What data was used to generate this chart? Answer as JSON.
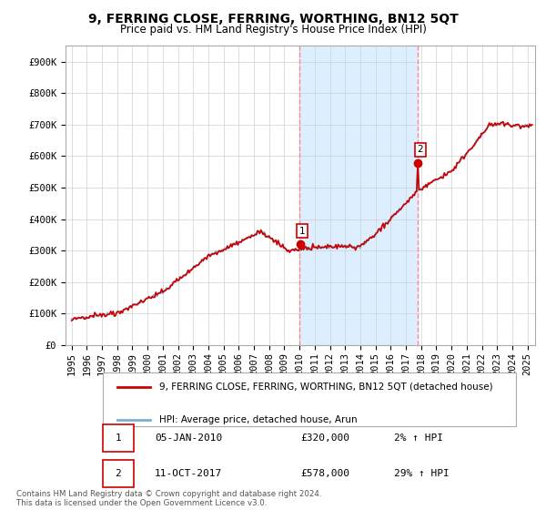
{
  "title": "9, FERRING CLOSE, FERRING, WORTHING, BN12 5QT",
  "subtitle": "Price paid vs. HM Land Registry's House Price Index (HPI)",
  "ylabel_ticks": [
    "£0",
    "£100K",
    "£200K",
    "£300K",
    "£400K",
    "£500K",
    "£600K",
    "£700K",
    "£800K",
    "£900K"
  ],
  "ytick_values": [
    0,
    100000,
    200000,
    300000,
    400000,
    500000,
    600000,
    700000,
    800000,
    900000
  ],
  "ylim": [
    0,
    950000
  ],
  "xlim_start": 1994.6,
  "xlim_end": 2025.5,
  "hpi_color": "#7bafd4",
  "price_color": "#cc0000",
  "vline_color": "#ff8888",
  "marker1_date": 2010.02,
  "marker2_date": 2017.79,
  "marker1_price": 320000,
  "marker2_price": 578000,
  "legend_label1": "9, FERRING CLOSE, FERRING, WORTHING, BN12 5QT (detached house)",
  "legend_label2": "HPI: Average price, detached house, Arun",
  "annotation1_label": "1",
  "annotation1_date": "05-JAN-2010",
  "annotation1_price": "£320,000",
  "annotation1_hpi": "2% ↑ HPI",
  "annotation2_label": "2",
  "annotation2_date": "11-OCT-2017",
  "annotation2_price": "£578,000",
  "annotation2_hpi": "29% ↑ HPI",
  "footer": "Contains HM Land Registry data © Crown copyright and database right 2024.\nThis data is licensed under the Open Government Licence v3.0.",
  "bg_color": "#ffffff",
  "shaded_color": "#ddeeff",
  "title_fontsize": 10,
  "subtitle_fontsize": 8.5,
  "tick_fontsize": 7.5
}
